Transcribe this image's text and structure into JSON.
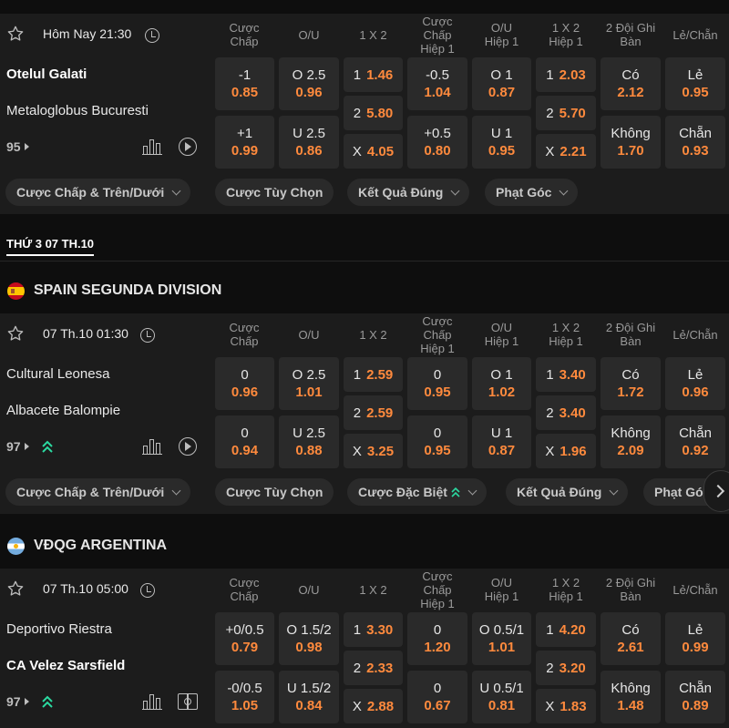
{
  "columns": {
    "hdp": "Cược\nChấp",
    "ou": "O/U",
    "x12": "1 X 2",
    "hdp_h1": "Cược\nChấp\nHiệp 1",
    "ou_h1": "O/U\nHiệp 1",
    "x12_h1": "1 X 2\nHiệp 1",
    "btts": "2 Đội Ghi\nBàn",
    "oe": "Lẻ/Chẵn"
  },
  "date_header": "THỨ 3 07 TH.10",
  "leagues": {
    "spain": "SPAIN SEGUNDA DIVISION",
    "argentina": "VĐQG ARGENTINA"
  },
  "matches": [
    {
      "time": "Hôm Nay 21:30",
      "home": "Otelul Galati",
      "away": "Metaloglobus Bucuresti",
      "more": "95",
      "home_row": {
        "hdp_line": "-1",
        "hdp_odds": "0.85",
        "ou_line": "O 2.5",
        "ou_odds": "0.96",
        "x12_label": "1",
        "x12_odds": "1.46",
        "hdp_h1_line": "-0.5",
        "hdp_h1_odds": "1.04",
        "ou_h1_line": "O 1",
        "ou_h1_odds": "0.87",
        "x12_h1_label": "1",
        "x12_h1_odds": "2.03",
        "btts_label": "Có",
        "btts_odds": "2.12",
        "oe_label": "Lẻ",
        "oe_odds": "0.95"
      },
      "draw_row": {
        "x12_label": "2",
        "x12_odds": "5.80",
        "x12_h1_label": "2",
        "x12_h1_odds": "5.70"
      },
      "away_row": {
        "hdp_line": "+1",
        "hdp_odds": "0.99",
        "ou_line": "U 2.5",
        "ou_odds": "0.86",
        "x12_label": "X",
        "x12_odds": "4.05",
        "hdp_h1_line": "+0.5",
        "hdp_h1_odds": "0.80",
        "ou_h1_line": "U 1",
        "ou_h1_odds": "0.95",
        "x12_h1_label": "X",
        "x12_h1_odds": "2.21",
        "btts_label": "Không",
        "btts_odds": "1.70",
        "oe_label": "Chẵn",
        "oe_odds": "0.93"
      },
      "chips": [
        "Cược Chấp & Trên/Dưới",
        "Cược Tùy Chọn",
        "Kết Quả Đúng",
        "Phạt Góc"
      ]
    },
    {
      "time": "07 Th.10 01:30",
      "home": "Cultural Leonesa",
      "away": "Albacete Balompie",
      "more": "97",
      "home_row": {
        "hdp_line": "0",
        "hdp_odds": "0.96",
        "ou_line": "O 2.5",
        "ou_odds": "1.01",
        "x12_label": "1",
        "x12_odds": "2.59",
        "hdp_h1_line": "0",
        "hdp_h1_odds": "0.95",
        "ou_h1_line": "O 1",
        "ou_h1_odds": "1.02",
        "x12_h1_label": "1",
        "x12_h1_odds": "3.40",
        "btts_label": "Có",
        "btts_odds": "1.72",
        "oe_label": "Lẻ",
        "oe_odds": "0.96"
      },
      "draw_row": {
        "x12_label": "2",
        "x12_odds": "2.59",
        "x12_h1_label": "2",
        "x12_h1_odds": "3.40"
      },
      "away_row": {
        "hdp_line": "0",
        "hdp_odds": "0.94",
        "ou_line": "U 2.5",
        "ou_odds": "0.88",
        "x12_label": "X",
        "x12_odds": "3.25",
        "hdp_h1_line": "0",
        "hdp_h1_odds": "0.95",
        "ou_h1_line": "U 1",
        "ou_h1_odds": "0.87",
        "x12_h1_label": "X",
        "x12_h1_odds": "1.96",
        "btts_label": "Không",
        "btts_odds": "2.09",
        "oe_label": "Chẵn",
        "oe_odds": "0.92"
      },
      "chips": [
        "Cược Chấp & Trên/Dưới",
        "Cược Tùy Chọn",
        "Cược Đặc Biệt",
        "Kết Quả Đúng",
        "Phạt Góc"
      ]
    },
    {
      "time": "07 Th.10 05:00",
      "home": "Deportivo Riestra",
      "away": "CA Velez Sarsfield",
      "more": "97",
      "home_row": {
        "hdp_line": "+0/0.5",
        "hdp_odds": "0.79",
        "ou_line": "O 1.5/2",
        "ou_odds": "0.98",
        "x12_label": "1",
        "x12_odds": "3.30",
        "hdp_h1_line": "0",
        "hdp_h1_odds": "1.20",
        "ou_h1_line": "O 0.5/1",
        "ou_h1_odds": "1.01",
        "x12_h1_label": "1",
        "x12_h1_odds": "4.20",
        "btts_label": "Có",
        "btts_odds": "2.61",
        "oe_label": "Lẻ",
        "oe_odds": "0.99"
      },
      "draw_row": {
        "x12_label": "2",
        "x12_odds": "2.33",
        "x12_h1_label": "2",
        "x12_h1_odds": "3.20"
      },
      "away_row": {
        "hdp_line": "-0/0.5",
        "hdp_odds": "1.05",
        "ou_line": "U 1.5/2",
        "ou_odds": "0.84",
        "x12_label": "X",
        "x12_odds": "2.88",
        "hdp_h1_line": "0",
        "hdp_h1_odds": "0.67",
        "ou_h1_line": "U 0.5/1",
        "ou_h1_odds": "0.81",
        "x12_h1_label": "X",
        "x12_h1_odds": "1.83",
        "btts_label": "Không",
        "btts_odds": "1.48",
        "oe_label": "Chẵn",
        "oe_odds": "0.89"
      }
    }
  ],
  "colors": {
    "odds": "#ff8a3d",
    "trend": "#2bd9a0",
    "cell_bg": "#2a2a2a",
    "card_bg": "#1c1c1c"
  }
}
